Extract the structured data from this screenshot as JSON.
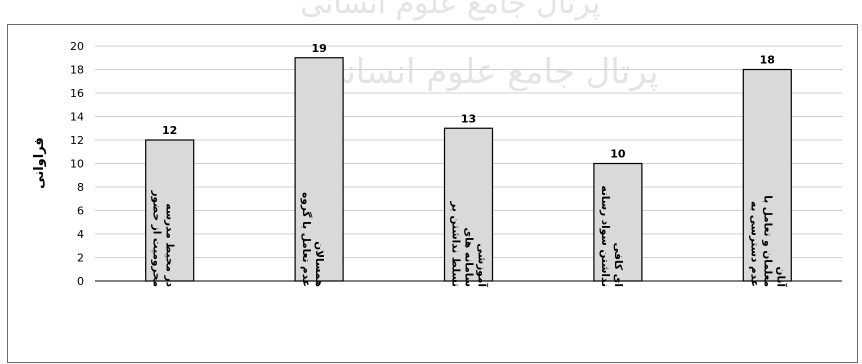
{
  "chart_data": {
    "type": "bar",
    "categories": [
      "محرومیت از حضور در محیط مدرسه",
      "عدم تعامل با گروه همسالان",
      "تسلط نداشتن بر سامانه های آموزشی",
      "نداشتن سواد رسانه ای کافی",
      "عدم دسترسی به معلمان و تعامل با آنان"
    ],
    "category_lines": [
      [
        "محرومیت از حضور",
        "در محیط مدرسه"
      ],
      [
        "عدم تعامل با گروه",
        "همسالان"
      ],
      [
        "تسلط نداشتن بر",
        "سامانه های",
        "آموزشی"
      ],
      [
        "نداشتن سواد رسانه",
        "ای کافی"
      ],
      [
        "عدم دسترسی به",
        "معلمان و تعامل با",
        "آنان"
      ]
    ],
    "values": [
      12,
      19,
      13,
      10,
      18
    ],
    "ylabel": "فراوانی",
    "xlabel": "",
    "ylim": [
      0,
      20
    ],
    "yticks": [
      0,
      2,
      4,
      6,
      8,
      10,
      12,
      14,
      16,
      18,
      20
    ],
    "grid": true,
    "legend": "none",
    "colors": {
      "bar_fill": "#d9d9d9",
      "bar_stroke": "#000000",
      "grid": "#d0d0d0",
      "text": "#000000"
    }
  },
  "watermark": {
    "line1": "پرتال جامع علوم انسانی",
    "line2": "پرتال جامع علوم انسانی"
  }
}
